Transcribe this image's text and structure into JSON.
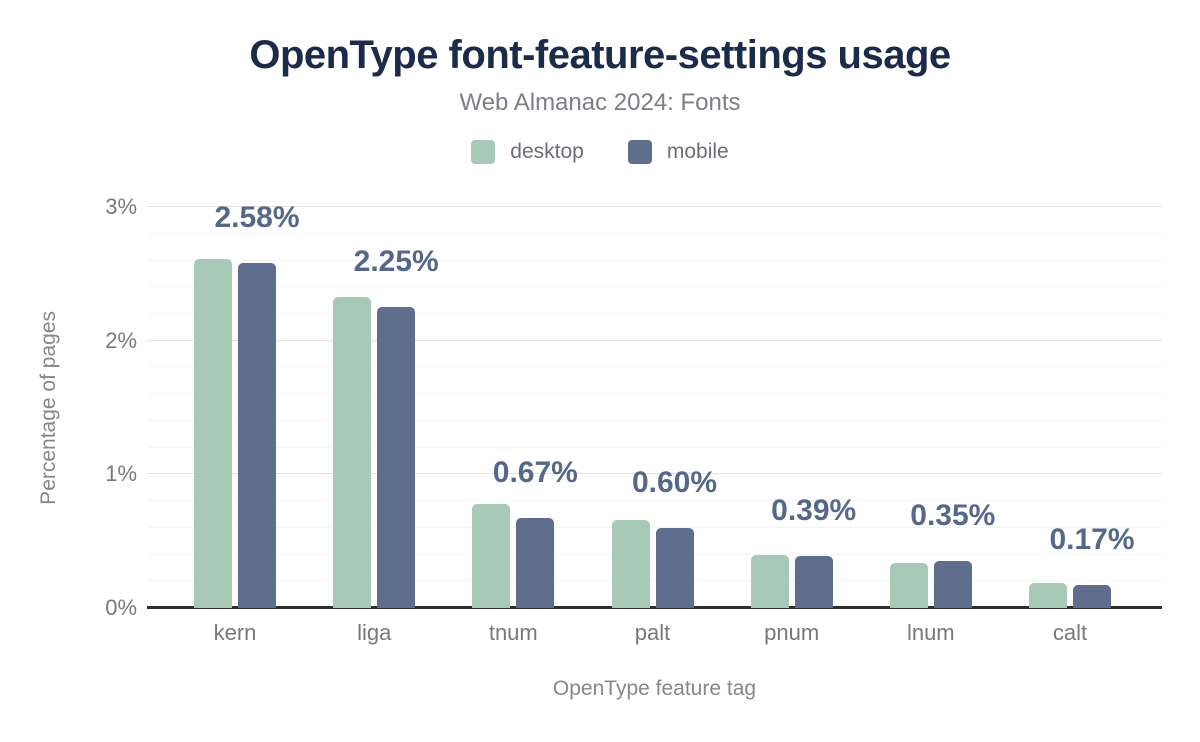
{
  "page": {
    "title": "OpenType font-feature-settings usage",
    "subtitle": "Web Almanac 2024: Fonts"
  },
  "legend": {
    "items": [
      {
        "label": "desktop",
        "color": "#a8c9b8"
      },
      {
        "label": "mobile",
        "color": "#5f6e8c"
      }
    ]
  },
  "axes": {
    "y_label": "Percentage of pages",
    "x_label": "OpenType feature tag"
  },
  "chart_data": {
    "type": "bar",
    "title": "OpenType font-feature-settings usage",
    "subtitle": "Web Almanac 2024: Fonts",
    "categories": [
      "kern",
      "liga",
      "tnum",
      "palt",
      "pnum",
      "lnum",
      "calt"
    ],
    "series": [
      {
        "name": "desktop",
        "color": "#a8c9b8",
        "values": [
          2.61,
          2.33,
          0.78,
          0.66,
          0.4,
          0.34,
          0.19
        ]
      },
      {
        "name": "mobile",
        "color": "#5f6e8c",
        "values": [
          2.58,
          2.25,
          0.67,
          0.6,
          0.39,
          0.35,
          0.17
        ]
      }
    ],
    "value_labels": [
      "2.58%",
      "2.25%",
      "0.67%",
      "0.60%",
      "0.39%",
      "0.35%",
      "0.17%"
    ],
    "value_labels_series": "mobile",
    "value_label_color": "#56688a",
    "xlabel": "OpenType feature tag",
    "ylabel": "Percentage of pages",
    "ylim": [
      0,
      3
    ],
    "y_ticks": [
      {
        "value": 0,
        "label": "0%"
      },
      {
        "value": 1,
        "label": "1%"
      },
      {
        "value": 2,
        "label": "2%"
      },
      {
        "value": 3,
        "label": "3%"
      }
    ],
    "grid": {
      "major_step": 1,
      "minor_step": 0.2,
      "orientation": "horizontal"
    },
    "legend_position": "top"
  }
}
